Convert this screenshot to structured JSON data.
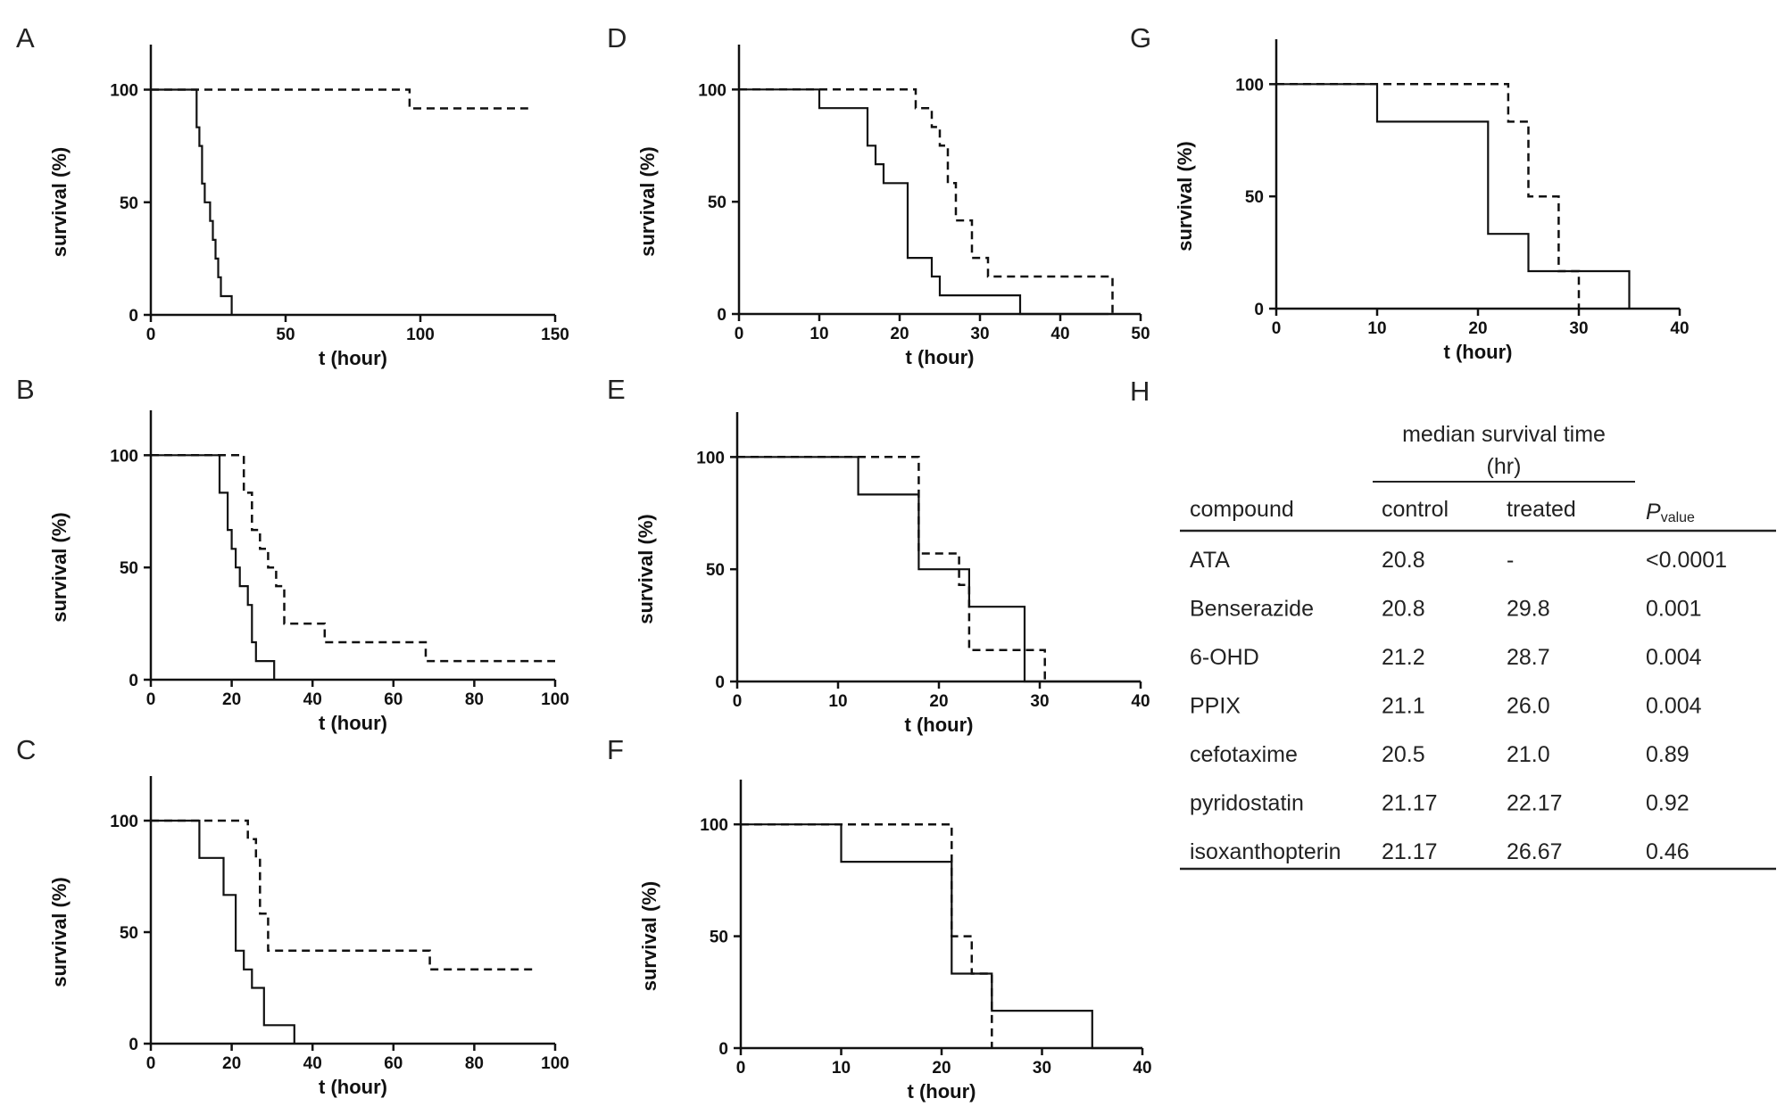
{
  "chart_data": [
    {
      "panel": "A",
      "type": "line",
      "step": true,
      "xlabel": "t (hour)",
      "ylabel": "survival (%)",
      "xlim": [
        0,
        150
      ],
      "ylim": [
        0,
        120
      ],
      "xticks": [
        0,
        50,
        100,
        150
      ],
      "yticks": [
        0,
        50,
        100
      ],
      "grid": false,
      "series": [
        {
          "style": "solid",
          "x": [
            0,
            15,
            17,
            18,
            19,
            20,
            22,
            23,
            24,
            25,
            26,
            30
          ],
          "y": [
            100,
            100,
            83.3,
            75,
            58.3,
            50,
            41.7,
            33.3,
            25,
            16.7,
            8.3,
            0
          ]
        },
        {
          "style": "dashed",
          "x": [
            0,
            96,
            140
          ],
          "y": [
            100,
            91.7,
            91.7
          ]
        }
      ]
    },
    {
      "panel": "B",
      "type": "line",
      "step": true,
      "xlabel": "t (hour)",
      "ylabel": "survival (%)",
      "xlim": [
        0,
        100
      ],
      "ylim": [
        0,
        120
      ],
      "xticks": [
        0,
        20,
        40,
        60,
        80,
        100
      ],
      "yticks": [
        0,
        50,
        100
      ],
      "grid": false,
      "series": [
        {
          "style": "solid",
          "x": [
            0,
            15,
            17,
            19,
            20,
            21,
            22,
            24,
            25,
            26,
            30.5
          ],
          "y": [
            100,
            100,
            83.3,
            66.7,
            58.3,
            50,
            41.7,
            33.3,
            16.7,
            8.3,
            0
          ]
        },
        {
          "style": "dashed",
          "x": [
            0,
            21,
            23,
            25,
            27,
            29,
            31,
            33,
            43,
            68,
            100
          ],
          "y": [
            100,
            100,
            83.3,
            66.7,
            58.3,
            50,
            41.7,
            25,
            16.7,
            8.3,
            8.3
          ]
        }
      ]
    },
    {
      "panel": "C",
      "type": "line",
      "step": true,
      "xlabel": "t (hour)",
      "ylabel": "survival (%)",
      "xlim": [
        0,
        100
      ],
      "ylim": [
        0,
        120
      ],
      "xticks": [
        0,
        20,
        40,
        60,
        80,
        100
      ],
      "yticks": [
        0,
        50,
        100
      ],
      "grid": false,
      "series": [
        {
          "style": "solid",
          "x": [
            0,
            10,
            12,
            18,
            21,
            23,
            25,
            28,
            35.5
          ],
          "y": [
            100,
            100,
            83.3,
            66.7,
            41.7,
            33.3,
            25,
            8.3,
            0
          ]
        },
        {
          "style": "dashed",
          "x": [
            0,
            18,
            24,
            26,
            27,
            29,
            69,
            95
          ],
          "y": [
            100,
            100,
            91.7,
            83.3,
            58.3,
            41.7,
            33.3,
            33.3
          ]
        }
      ]
    },
    {
      "panel": "D",
      "type": "line",
      "step": true,
      "xlabel": "t (hour)",
      "ylabel": "survival (%)",
      "xlim": [
        0,
        50
      ],
      "ylim": [
        0,
        120
      ],
      "xticks": [
        0,
        10,
        20,
        30,
        40,
        50
      ],
      "yticks": [
        0,
        50,
        100
      ],
      "grid": false,
      "series": [
        {
          "style": "solid",
          "x": [
            0,
            10,
            16,
            17,
            18,
            21,
            24,
            25,
            35,
            46
          ],
          "y": [
            100,
            91.7,
            75,
            66.7,
            58.3,
            25,
            16.7,
            8.3,
            0,
            0
          ]
        },
        {
          "style": "dashed",
          "x": [
            0,
            21,
            22,
            24,
            25,
            26,
            27,
            29,
            31,
            46,
            46.5
          ],
          "y": [
            100,
            100,
            91.7,
            83.3,
            75,
            58.3,
            41.7,
            25,
            16.7,
            16.7,
            0
          ]
        }
      ]
    },
    {
      "panel": "E",
      "type": "line",
      "step": true,
      "xlabel": "t (hour)",
      "ylabel": "survival (%)",
      "xlim": [
        0,
        40
      ],
      "ylim": [
        0,
        120
      ],
      "xticks": [
        0,
        10,
        20,
        30,
        40
      ],
      "yticks": [
        0,
        50,
        100
      ],
      "grid": false,
      "series": [
        {
          "style": "solid",
          "x": [
            0,
            12,
            18,
            23,
            28.5,
            40
          ],
          "y": [
            100,
            83.3,
            50,
            33.3,
            0,
            0
          ]
        },
        {
          "style": "dashed",
          "x": [
            0,
            18,
            20,
            22,
            23,
            30.5
          ],
          "y": [
            100,
            57,
            57,
            43,
            14,
            0
          ]
        }
      ]
    },
    {
      "panel": "F",
      "type": "line",
      "step": true,
      "xlabel": "t (hour)",
      "ylabel": "survival (%)",
      "xlim": [
        0,
        40
      ],
      "ylim": [
        0,
        120
      ],
      "xticks": [
        0,
        10,
        20,
        30,
        40
      ],
      "yticks": [
        0,
        50,
        100
      ],
      "grid": false,
      "series": [
        {
          "style": "solid",
          "x": [
            0,
            10,
            21,
            25,
            35,
            40
          ],
          "y": [
            100,
            83.3,
            33.3,
            16.7,
            0,
            0
          ]
        },
        {
          "style": "dashed",
          "x": [
            0,
            21,
            23,
            25
          ],
          "y": [
            100,
            50,
            33.3,
            0
          ]
        }
      ]
    },
    {
      "panel": "G",
      "type": "line",
      "step": true,
      "xlabel": "t (hour)",
      "ylabel": "survival (%)",
      "xlim": [
        0,
        40
      ],
      "ylim": [
        0,
        120
      ],
      "xticks": [
        0,
        10,
        20,
        30,
        40
      ],
      "yticks": [
        0,
        50,
        100
      ],
      "grid": false,
      "series": [
        {
          "style": "solid",
          "x": [
            0,
            10,
            21,
            25,
            35
          ],
          "y": [
            100,
            83.3,
            33.3,
            16.7,
            0
          ]
        },
        {
          "style": "dashed",
          "x": [
            0,
            23,
            25,
            28,
            30
          ],
          "y": [
            100,
            83.3,
            50,
            16.7,
            0
          ]
        }
      ]
    }
  ],
  "table": {
    "panel": "H",
    "group_header": [
      "median survival time",
      "(hr)"
    ],
    "col_compound": "compound",
    "col_control": "control",
    "col_treated": "treated",
    "col_p_main": "P",
    "col_p_sub": "value",
    "rows": [
      [
        "ATA",
        "20.8",
        "-",
        "<0.0001"
      ],
      [
        "Benserazide",
        "20.8",
        "29.8",
        "0.001"
      ],
      [
        "6-OHD",
        "21.2",
        "28.7",
        "0.004"
      ],
      [
        "PPIX",
        "21.1",
        "26.0",
        "0.004"
      ],
      [
        "cefotaxime",
        "20.5",
        "21.0",
        "0.89"
      ],
      [
        "pyridostatin",
        "21.17",
        "22.17",
        "0.92"
      ],
      [
        "isoxanthopterin",
        "21.17",
        "26.67",
        "0.46"
      ]
    ]
  }
}
